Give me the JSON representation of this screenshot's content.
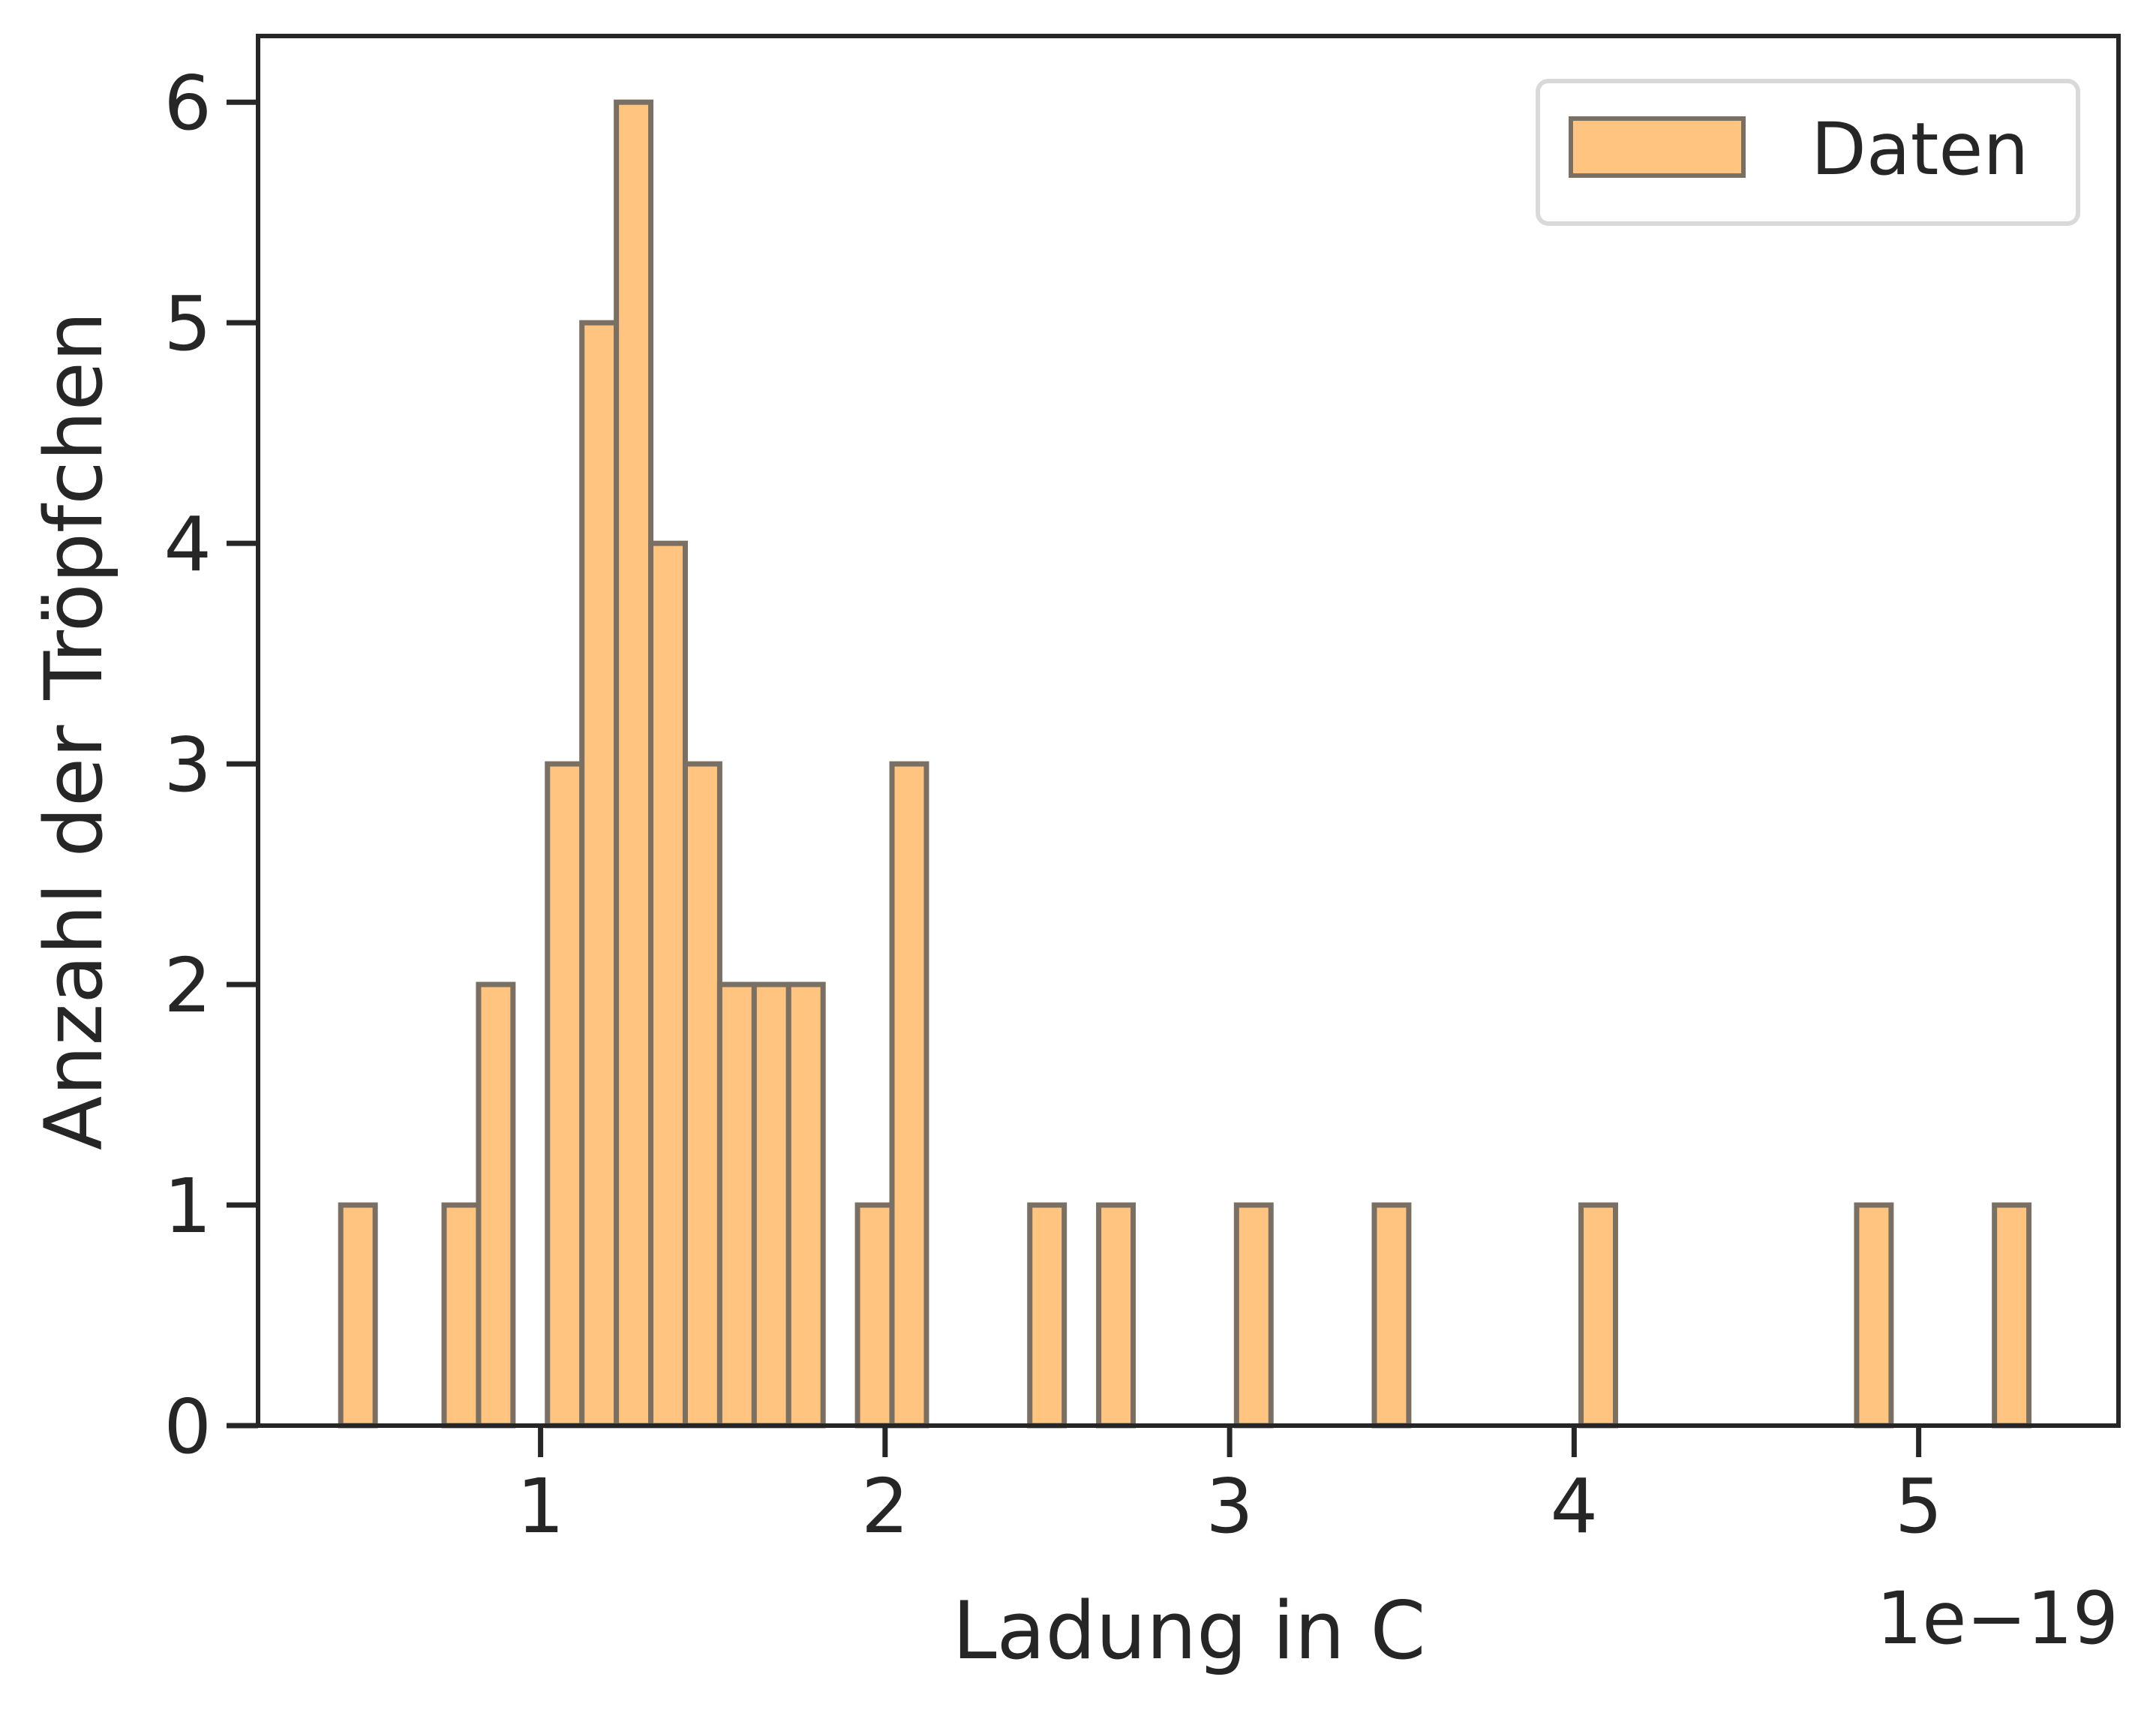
{
  "chart_data": {
    "type": "bar",
    "title": "",
    "xlabel": "Ladung in C",
    "ylabel": "Anzahl der Tröpfchen",
    "x_offset_label": "1e−19",
    "xlim": [
      0.18,
      5.58
    ],
    "ylim": [
      0,
      6.3
    ],
    "xticks": [
      1,
      2,
      3,
      4,
      5
    ],
    "yticks": [
      0,
      1,
      2,
      3,
      4,
      5,
      6
    ],
    "bin_width": 0.1,
    "bin_left_edges": [
      0.42,
      0.72,
      0.82,
      1.02,
      1.12,
      1.22,
      1.32,
      1.42,
      1.52,
      1.62,
      1.72,
      1.92,
      2.02,
      2.42,
      2.62,
      3.02,
      3.42,
      4.02,
      4.82,
      5.22
    ],
    "values": [
      1,
      1,
      2,
      3,
      5,
      6,
      4,
      3,
      2,
      2,
      2,
      1,
      3,
      1,
      1,
      1,
      1,
      1,
      1,
      1
    ],
    "legend": {
      "position": "top-right",
      "entries": [
        "Daten"
      ]
    },
    "colors": {
      "bar_fill": "#ffc47f",
      "bar_edge": "#7a6f63",
      "axis": "#262626",
      "legend_border": "#d9d9d9"
    },
    "grid": false
  }
}
